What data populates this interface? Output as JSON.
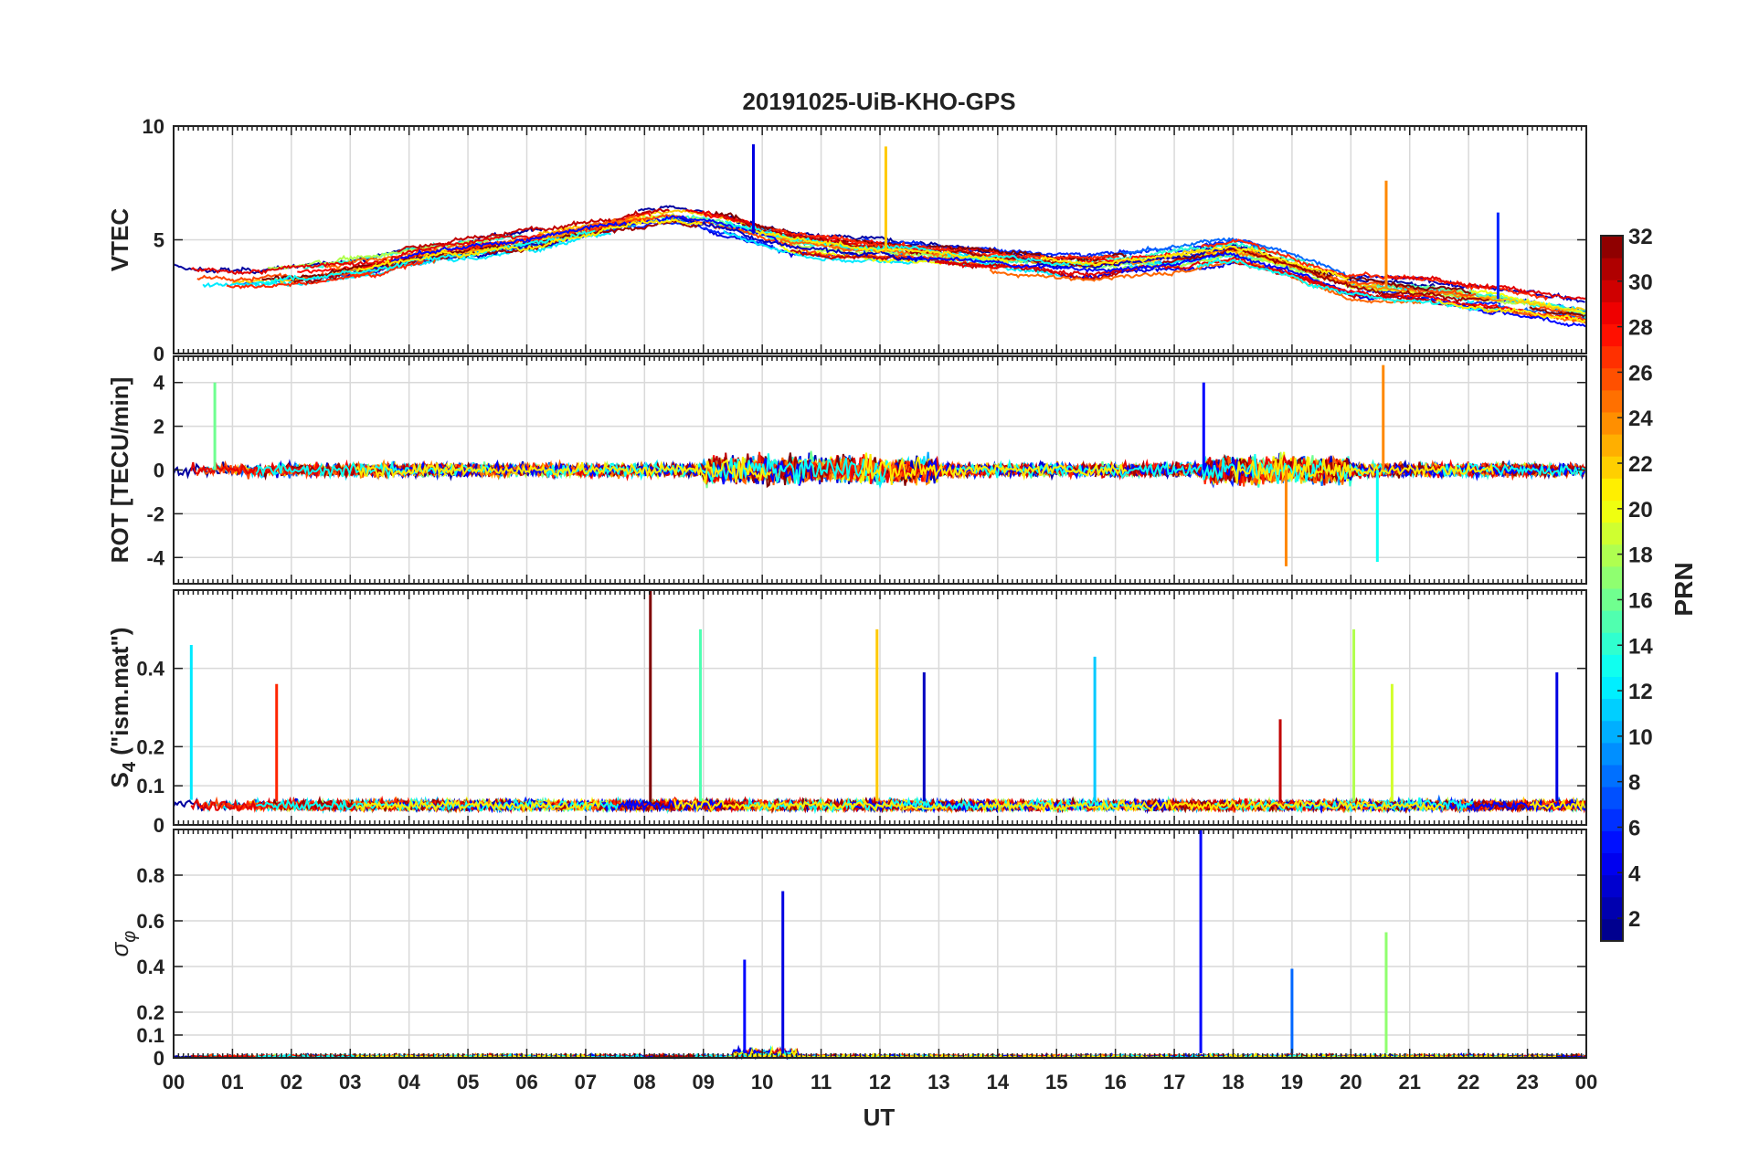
{
  "figure": {
    "title": "20191025-UiB-KHO-GPS",
    "xlabel": "UT",
    "colorbar": {
      "label": "PRN",
      "min": 1,
      "max": 32,
      "ticks": [
        "2",
        "4",
        "6",
        "8",
        "10",
        "12",
        "14",
        "16",
        "18",
        "20",
        "22",
        "24",
        "26",
        "28",
        "30",
        "32"
      ],
      "colormap": "jet"
    },
    "xticks": [
      "00",
      "01",
      "02",
      "03",
      "04",
      "05",
      "06",
      "07",
      "08",
      "09",
      "10",
      "11",
      "12",
      "13",
      "14",
      "15",
      "16",
      "17",
      "18",
      "19",
      "20",
      "21",
      "22",
      "23",
      "00"
    ]
  },
  "chart_data": [
    {
      "type": "line",
      "panel": "vtec",
      "ylabel": "VTEC",
      "xlim": [
        0,
        24
      ],
      "ylim": [
        0,
        10
      ],
      "yticks": [
        "0",
        "5",
        "10"
      ],
      "grid": true,
      "baseline": [
        3.6,
        3.4,
        3.3,
        3.4,
        3.5,
        3.6,
        3.8,
        4.0,
        4.3,
        4.5,
        4.6,
        4.8,
        5.0,
        5.2,
        5.5,
        5.8,
        6.0,
        6.1,
        5.9,
        5.6,
        5.2,
        4.9,
        4.7,
        4.6,
        4.5,
        4.4,
        4.3,
        4.2,
        4.1,
        4.0,
        3.9,
        3.8,
        3.9,
        4.0,
        4.1,
        4.3,
        4.5,
        4.2,
        3.8,
        3.4,
        3.0,
        2.9,
        2.8,
        2.7,
        2.5,
        2.4,
        2.2,
        2.0,
        1.8
      ],
      "notable": [
        {
          "prn": 4,
          "x": 9.85,
          "y": 9.2
        },
        {
          "prn": 22,
          "x": 12.1,
          "y": 9.1
        },
        {
          "prn": 24,
          "x": 20.6,
          "y": 7.6
        },
        {
          "prn": 6,
          "x": 22.5,
          "y": 6.2
        }
      ]
    },
    {
      "type": "line",
      "panel": "rot",
      "ylabel": "ROT [TECU/min]",
      "xlim": [
        0,
        24
      ],
      "ylim": [
        -5.2,
        5.2
      ],
      "yticks": [
        "-4",
        "-2",
        "0",
        "2",
        "4"
      ],
      "grid": true,
      "baseline": [
        0,
        0,
        0,
        0,
        0,
        0,
        0,
        0,
        0,
        0,
        0,
        0,
        0,
        0,
        0,
        0,
        0,
        0,
        0,
        0,
        0,
        0,
        0,
        0,
        0,
        0,
        0,
        0,
        0,
        0,
        0,
        0,
        0,
        0,
        0,
        0,
        0,
        0,
        0,
        0,
        0,
        0,
        0,
        0,
        0,
        0,
        0,
        0,
        0
      ],
      "notable": [
        {
          "prn": 16,
          "x": 0.7,
          "y": 4.0
        },
        {
          "prn": 5,
          "x": 17.5,
          "y": 4.0
        },
        {
          "prn": 24,
          "x": 18.9,
          "y": -4.4
        },
        {
          "prn": 24,
          "x": 20.55,
          "y": 4.8
        },
        {
          "prn": 13,
          "x": 20.45,
          "y": -4.2
        }
      ]
    },
    {
      "type": "line",
      "panel": "s4",
      "ylabel": "S_4 (\"ism.mat\")",
      "xlim": [
        0,
        24
      ],
      "ylim": [
        0,
        0.6
      ],
      "yticks": [
        "0",
        "0.1",
        "0.2",
        "0.4"
      ],
      "grid": true,
      "baseline": [
        0.07,
        0.06,
        0.06,
        0.06,
        0.06,
        0.06,
        0.06,
        0.06,
        0.06,
        0.06,
        0.06,
        0.06,
        0.06,
        0.06,
        0.06,
        0.06,
        0.06,
        0.06,
        0.06,
        0.06,
        0.06,
        0.06,
        0.06,
        0.06,
        0.06,
        0.06,
        0.06,
        0.06,
        0.06,
        0.06,
        0.06,
        0.06,
        0.06,
        0.06,
        0.06,
        0.06,
        0.06,
        0.06,
        0.06,
        0.06,
        0.06,
        0.06,
        0.06,
        0.06,
        0.06,
        0.06,
        0.06,
        0.06,
        0.06
      ],
      "notable": [
        {
          "prn": 12,
          "x": 0.3,
          "y": 0.46
        },
        {
          "prn": 27,
          "x": 1.75,
          "y": 0.36
        },
        {
          "prn": 32,
          "x": 8.1,
          "y": 0.6
        },
        {
          "prn": 15,
          "x": 8.95,
          "y": 0.5
        },
        {
          "prn": 22,
          "x": 11.95,
          "y": 0.5
        },
        {
          "prn": 3,
          "x": 12.75,
          "y": 0.39
        },
        {
          "prn": 11,
          "x": 15.65,
          "y": 0.43
        },
        {
          "prn": 30,
          "x": 18.8,
          "y": 0.27
        },
        {
          "prn": 18,
          "x": 20.05,
          "y": 0.5
        },
        {
          "prn": 19,
          "x": 20.7,
          "y": 0.36
        },
        {
          "prn": 4,
          "x": 23.5,
          "y": 0.39
        }
      ]
    },
    {
      "type": "line",
      "panel": "sigma_phi",
      "ylabel": "σ_φ",
      "xlim": [
        0,
        24
      ],
      "ylim": [
        0,
        1.0
      ],
      "yticks": [
        "0",
        "0.1",
        "0.2",
        "0.4",
        "0.6",
        "0.8"
      ],
      "grid": true,
      "baseline": [
        0.02,
        0.02,
        0.02,
        0.02,
        0.02,
        0.02,
        0.02,
        0.02,
        0.02,
        0.02,
        0.02,
        0.02,
        0.02,
        0.02,
        0.02,
        0.02,
        0.02,
        0.02,
        0.02,
        0.02,
        0.02,
        0.02,
        0.02,
        0.02,
        0.02,
        0.02,
        0.02,
        0.02,
        0.02,
        0.02,
        0.02,
        0.02,
        0.02,
        0.02,
        0.02,
        0.02,
        0.02,
        0.02,
        0.02,
        0.02,
        0.02,
        0.02,
        0.02,
        0.02,
        0.02,
        0.02,
        0.02,
        0.02,
        0.02
      ],
      "notable": [
        {
          "prn": 5,
          "x": 9.7,
          "y": 0.43
        },
        {
          "prn": 4,
          "x": 10.35,
          "y": 0.73
        },
        {
          "prn": 5,
          "x": 17.45,
          "y": 1.0
        },
        {
          "prn": 8,
          "x": 19.0,
          "y": 0.39
        },
        {
          "prn": 17,
          "x": 20.6,
          "y": 0.55
        }
      ]
    }
  ]
}
